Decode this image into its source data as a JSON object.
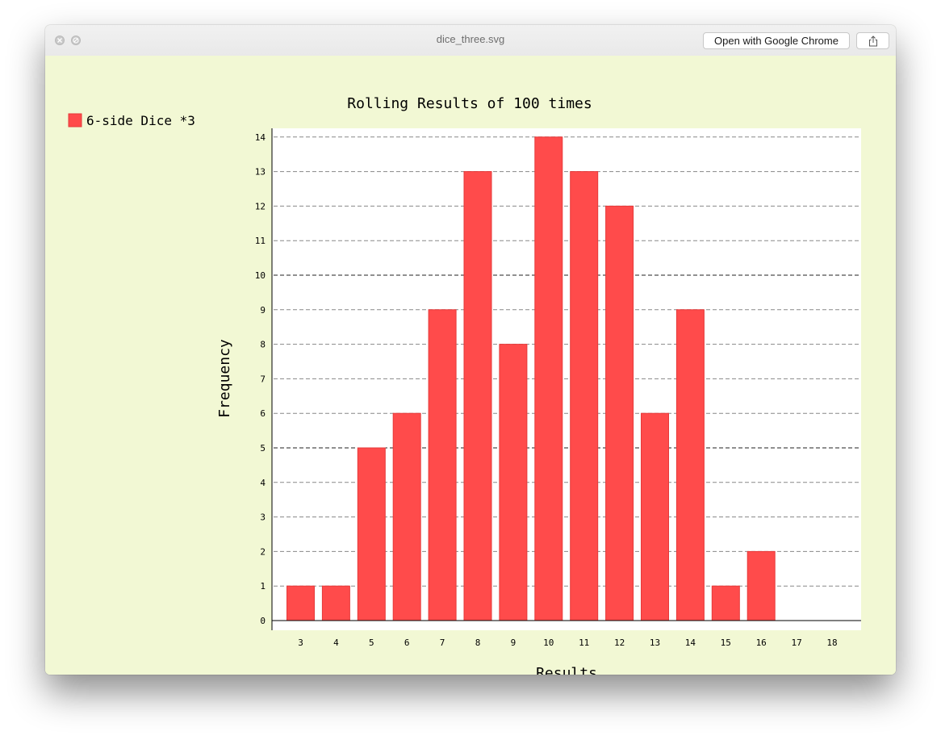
{
  "window": {
    "title": "dice_three.svg",
    "open_button_label": "Open with Google Chrome"
  },
  "icons": {
    "close": "close-icon",
    "disabled": "minimize-disabled-icon",
    "share": "share-icon"
  },
  "colors": {
    "bar_fill": "#ff4b4b",
    "bar_stroke": "#e63a3a",
    "background": "#f2f8d4",
    "plot_background": "#ffffff"
  },
  "chart_data": {
    "type": "bar",
    "title": "Rolling Results of 100 times",
    "xlabel": "Results",
    "ylabel": "Frequency",
    "legend_position": "top-left",
    "grid": true,
    "ylim": [
      0,
      14
    ],
    "y_ticks": [
      "0",
      "1",
      "2",
      "3",
      "4",
      "5",
      "6",
      "7",
      "8",
      "9",
      "10",
      "11",
      "12",
      "13",
      "14"
    ],
    "categories": [
      "3",
      "4",
      "5",
      "6",
      "7",
      "8",
      "9",
      "10",
      "11",
      "12",
      "13",
      "14",
      "15",
      "16",
      "17",
      "18"
    ],
    "series": [
      {
        "name": "6-side Dice *3",
        "values": [
          1,
          1,
          5,
          6,
          9,
          13,
          8,
          14,
          13,
          12,
          6,
          9,
          1,
          2,
          0,
          0
        ]
      }
    ]
  }
}
